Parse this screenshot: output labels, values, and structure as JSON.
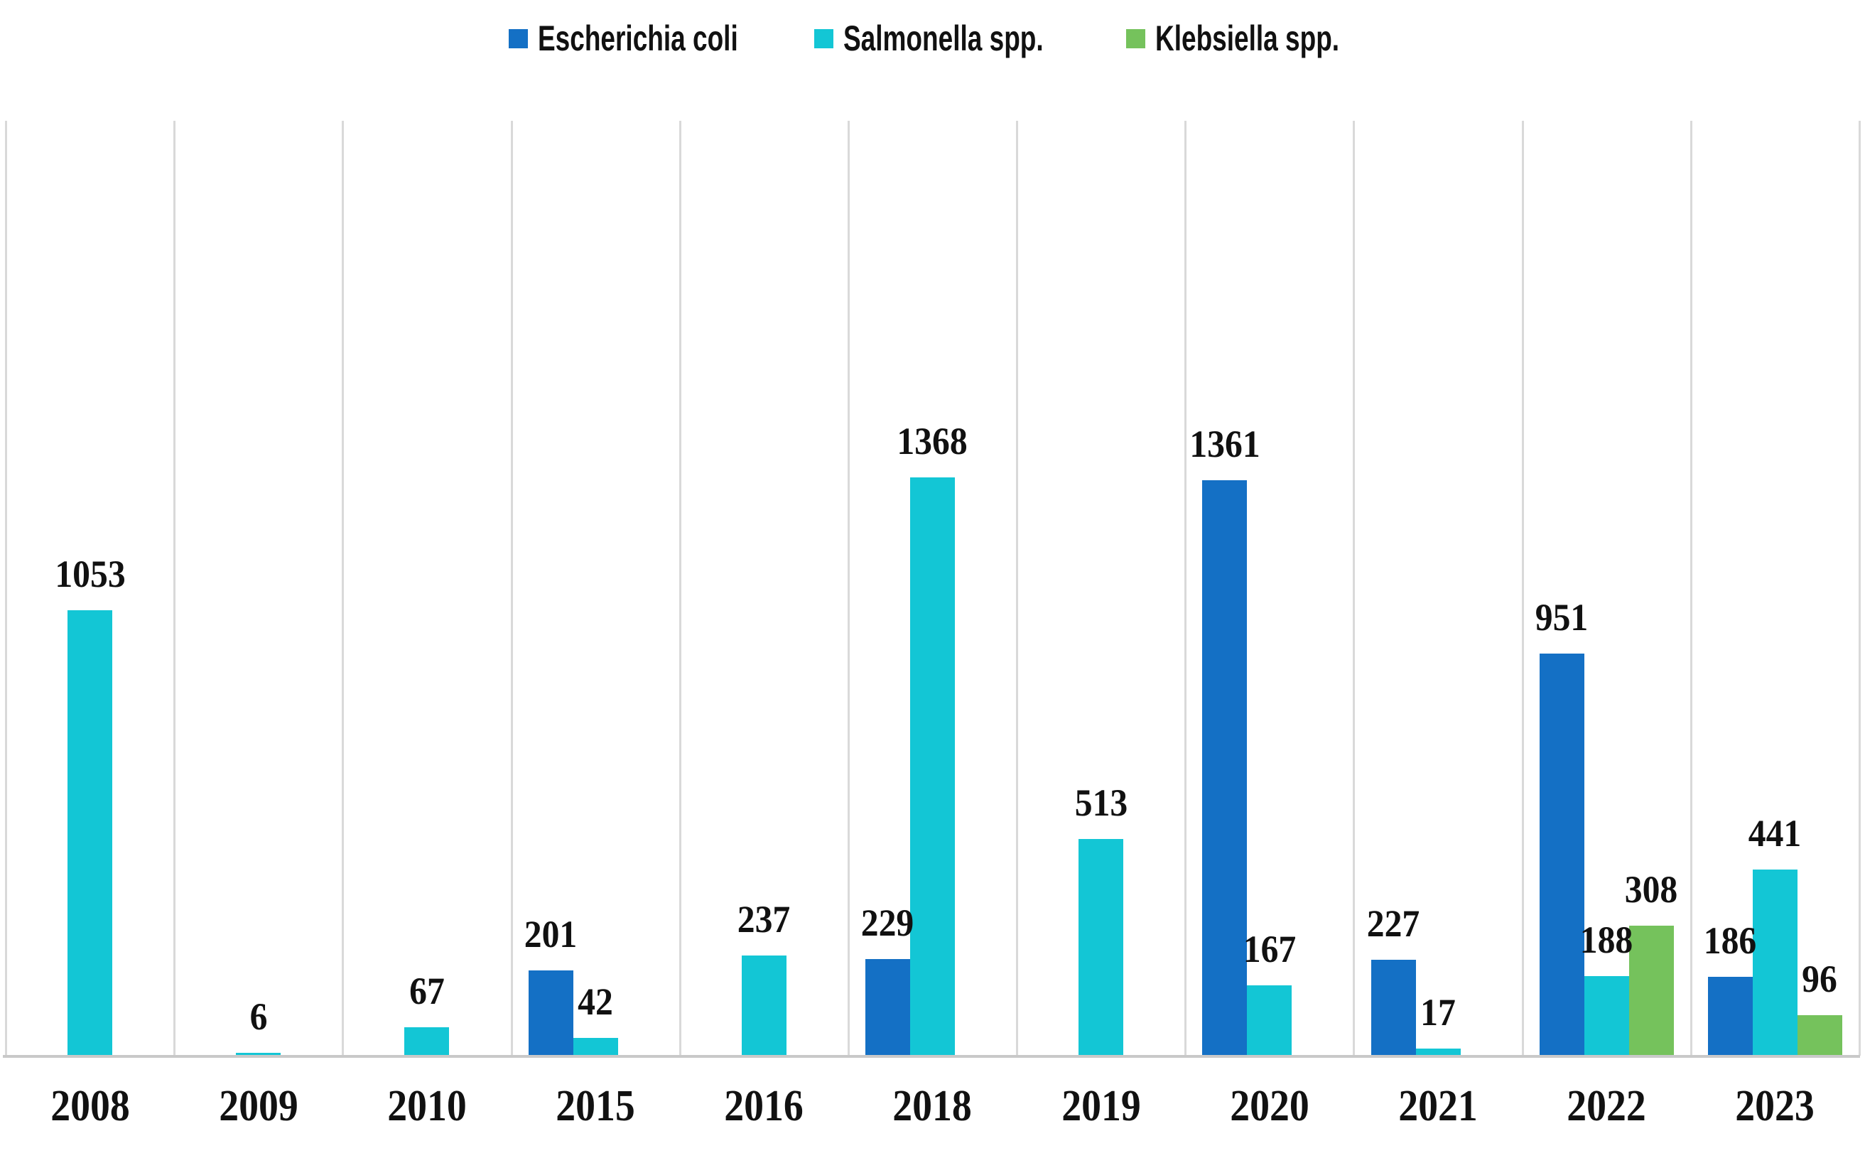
{
  "chart_data": {
    "type": "bar",
    "title": "",
    "xlabel": "",
    "ylabel": "",
    "background": "#FFFFFF",
    "legend_position": "top",
    "grid": "vertical category separators only",
    "gridline_color": "#D9D9D9",
    "axis_line_color": "#C9C9C9",
    "label_color": "#111111",
    "data_labels": true,
    "y_axis_visible": false,
    "categories": [
      "2008",
      "2009",
      "2010",
      "2015",
      "2016",
      "2018",
      "2019",
      "2020",
      "2021",
      "2022",
      "2023"
    ],
    "series": [
      {
        "name": "Escherichia coli",
        "color": "#1470C5",
        "values": [
          null,
          null,
          null,
          201,
          null,
          229,
          null,
          1361,
          227,
          951,
          186
        ]
      },
      {
        "name": "Salmonella spp.",
        "color": "#13C6D5",
        "values": [
          1053,
          6,
          67,
          42,
          237,
          1368,
          513,
          167,
          17,
          188,
          441
        ]
      },
      {
        "name": "Klebsiella spp.",
        "color": "#75C25C",
        "values": [
          null,
          null,
          null,
          null,
          null,
          null,
          null,
          null,
          null,
          308,
          96
        ]
      }
    ]
  }
}
